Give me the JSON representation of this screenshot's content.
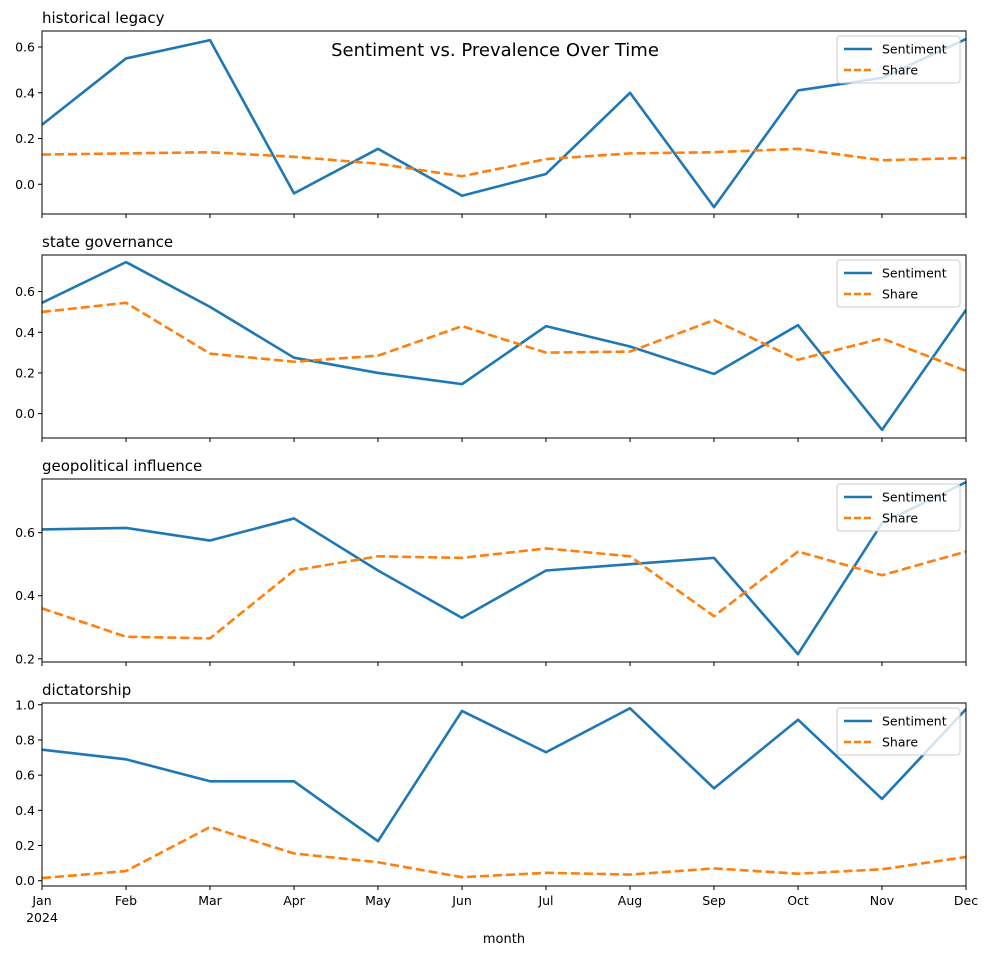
{
  "figure": {
    "suptitle": "Sentiment vs. Prevalence Over Time",
    "xlabel": "month"
  },
  "colors": {
    "sentiment": "#1f77b4",
    "share": "#ff7f0e"
  },
  "chart_data": [
    {
      "type": "line",
      "title": "historical legacy",
      "categories": [
        "Jan",
        "Feb",
        "Mar",
        "Apr",
        "May",
        "Jun",
        "Jul",
        "Aug",
        "Sep",
        "Oct",
        "Nov",
        "Dec"
      ],
      "series": [
        {
          "name": "Sentiment",
          "values": [
            0.26,
            0.55,
            0.63,
            -0.04,
            0.155,
            -0.05,
            0.045,
            0.4,
            -0.1,
            0.41,
            0.465,
            0.635
          ]
        },
        {
          "name": "Share",
          "values": [
            0.13,
            0.135,
            0.14,
            0.12,
            0.09,
            0.035,
            0.11,
            0.135,
            0.14,
            0.155,
            0.105,
            0.115
          ]
        }
      ],
      "ylim": [
        -0.13,
        0.67
      ],
      "yticks": [
        "0.0",
        "0.2",
        "0.4",
        "0.6"
      ],
      "legend": "top-right"
    },
    {
      "type": "line",
      "title": "state governance",
      "categories": [
        "Jan",
        "Feb",
        "Mar",
        "Apr",
        "May",
        "Jun",
        "Jul",
        "Aug",
        "Sep",
        "Oct",
        "Nov",
        "Dec"
      ],
      "series": [
        {
          "name": "Sentiment",
          "values": [
            0.545,
            0.745,
            0.525,
            0.275,
            0.2,
            0.145,
            0.43,
            0.33,
            0.195,
            0.435,
            -0.08,
            0.51
          ]
        },
        {
          "name": "Share",
          "values": [
            0.5,
            0.545,
            0.295,
            0.255,
            0.285,
            0.43,
            0.3,
            0.305,
            0.46,
            0.265,
            0.37,
            0.21
          ]
        }
      ],
      "ylim": [
        -0.12,
        0.78
      ],
      "yticks": [
        "0.0",
        "0.2",
        "0.4",
        "0.6"
      ],
      "legend": "top-right"
    },
    {
      "type": "line",
      "title": "geopolitical influence",
      "categories": [
        "Jan",
        "Feb",
        "Mar",
        "Apr",
        "May",
        "Jun",
        "Jul",
        "Aug",
        "Sep",
        "Oct",
        "Nov",
        "Dec"
      ],
      "series": [
        {
          "name": "Sentiment",
          "values": [
            0.61,
            0.615,
            0.575,
            0.645,
            0.48,
            0.33,
            0.48,
            0.5,
            0.52,
            0.215,
            0.63,
            0.76
          ]
        },
        {
          "name": "Share",
          "values": [
            0.36,
            0.27,
            0.265,
            0.48,
            0.525,
            0.52,
            0.55,
            0.525,
            0.335,
            0.54,
            0.465,
            0.54
          ]
        }
      ],
      "ylim": [
        0.19,
        0.77
      ],
      "yticks": [
        "0.2",
        "0.4",
        "0.6"
      ],
      "legend": "top-right"
    },
    {
      "type": "line",
      "title": "dictatorship",
      "categories": [
        "Jan",
        "Feb",
        "Mar",
        "Apr",
        "May",
        "Jun",
        "Jul",
        "Aug",
        "Sep",
        "Oct",
        "Nov",
        "Dec"
      ],
      "series": [
        {
          "name": "Sentiment",
          "values": [
            0.745,
            0.69,
            0.565,
            0.565,
            0.225,
            0.965,
            0.73,
            0.98,
            0.525,
            0.915,
            0.465,
            0.975
          ]
        },
        {
          "name": "Share",
          "values": [
            0.015,
            0.055,
            0.305,
            0.155,
            0.105,
            0.02,
            0.045,
            0.035,
            0.07,
            0.04,
            0.065,
            0.135
          ]
        }
      ],
      "ylim": [
        -0.03,
        1.01
      ],
      "yticks": [
        "0.0",
        "0.2",
        "0.4",
        "0.6",
        "0.8",
        "1.0"
      ],
      "legend": "top-right"
    }
  ],
  "xaxis": {
    "ticklabels": [
      "Jan",
      "Feb",
      "Mar",
      "Apr",
      "May",
      "Jun",
      "Jul",
      "Aug",
      "Sep",
      "Oct",
      "Nov",
      "Dec"
    ],
    "year_label": "2024"
  }
}
